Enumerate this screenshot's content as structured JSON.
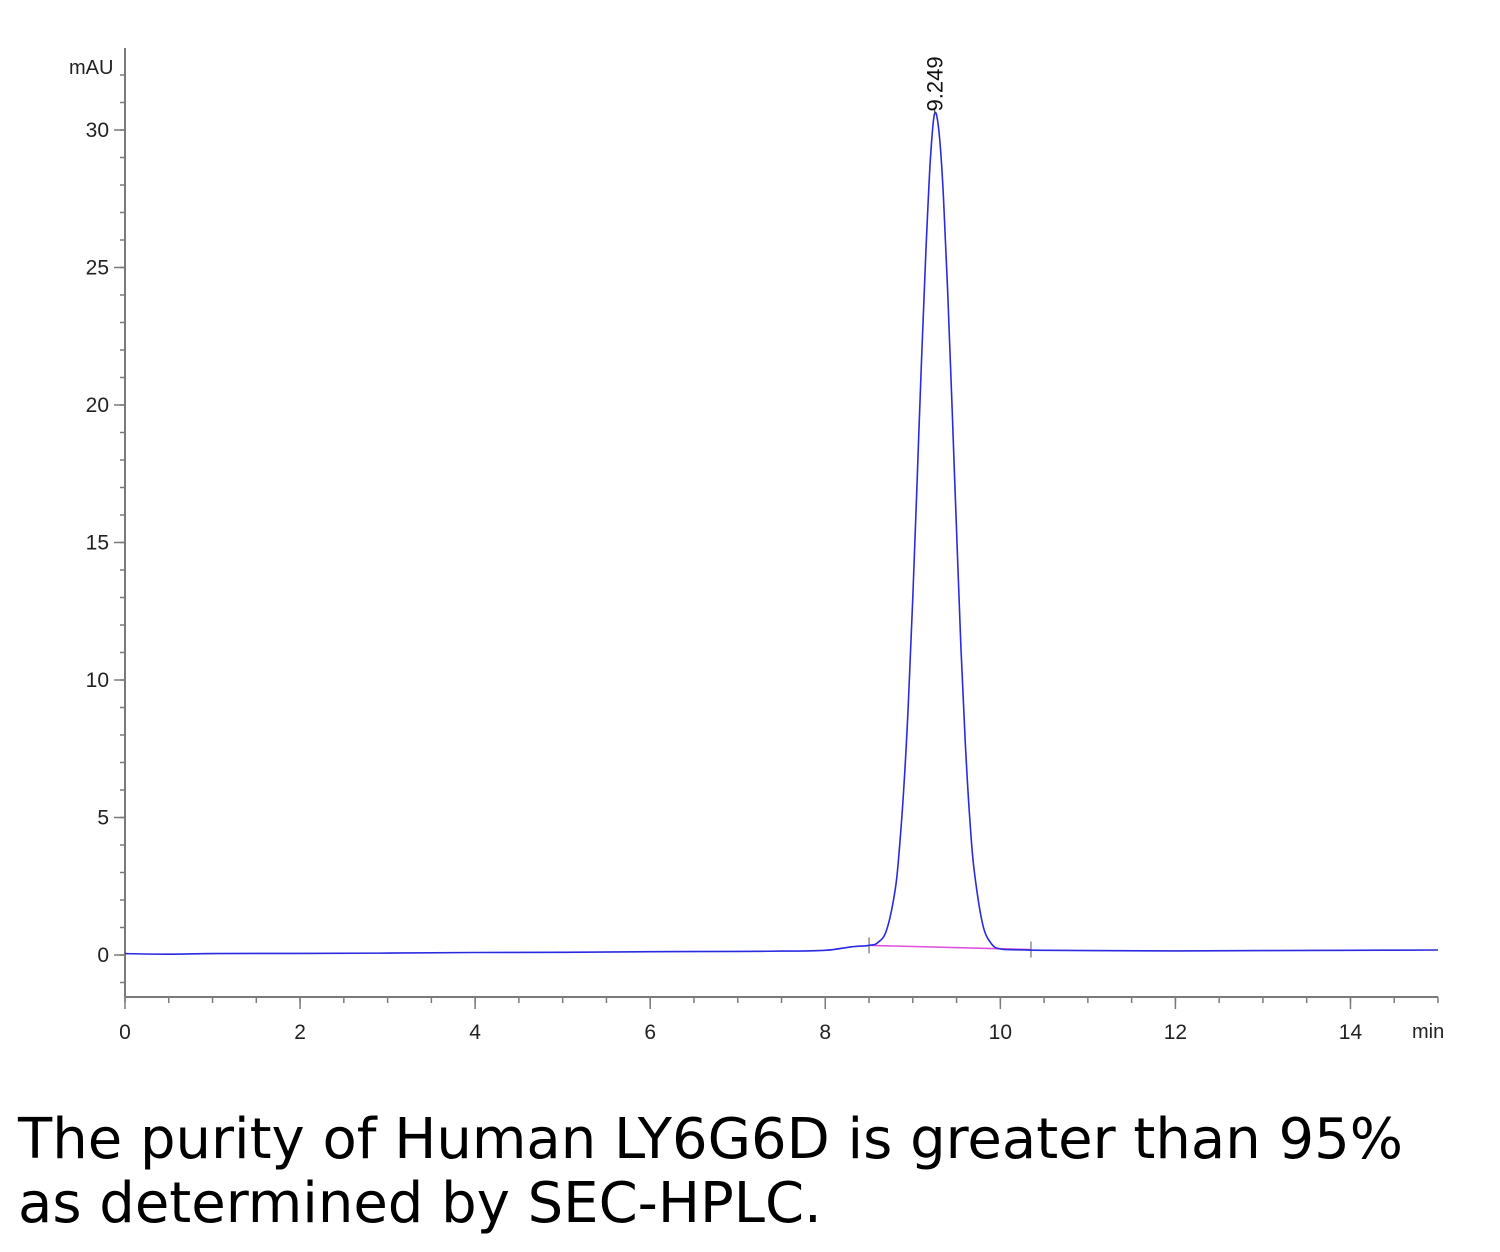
{
  "chart_data": {
    "type": "line",
    "xlabel": "min",
    "ylabel": "mAU",
    "xlim": [
      0,
      15
    ],
    "ylim": [
      -1.5,
      32.8
    ],
    "x_ticks": [
      0,
      2,
      4,
      6,
      8,
      10,
      12,
      14
    ],
    "y_ticks": [
      0,
      5,
      10,
      15,
      20,
      25,
      30
    ],
    "grid": false,
    "series": [
      {
        "color": "#2a2ae0",
        "x": [
          0,
          0.5,
          1,
          2,
          3,
          4,
          5,
          6,
          7,
          7.5,
          8,
          8.3,
          8.5,
          8.6,
          8.7,
          8.8,
          8.85,
          8.9,
          8.95,
          9.0,
          9.05,
          9.1,
          9.15,
          9.2,
          9.249,
          9.3,
          9.35,
          9.4,
          9.45,
          9.5,
          9.55,
          9.6,
          9.65,
          9.7,
          9.8,
          9.9,
          10.0,
          10.2,
          10.5,
          11,
          12,
          13,
          14,
          15
        ],
        "y": [
          0.05,
          0.03,
          0.05,
          0.06,
          0.07,
          0.09,
          0.1,
          0.12,
          0.13,
          0.14,
          0.17,
          0.3,
          0.35,
          0.45,
          0.9,
          2.4,
          4.0,
          6.2,
          9.2,
          13.0,
          17.3,
          21.7,
          25.6,
          28.9,
          30.6,
          29.9,
          27.6,
          24.0,
          19.8,
          15.4,
          11.2,
          7.7,
          5.0,
          3.1,
          1.1,
          0.4,
          0.22,
          0.19,
          0.17,
          0.16,
          0.15,
          0.16,
          0.17,
          0.18
        ]
      }
    ],
    "integration_baseline": {
      "color": "#e050e0",
      "x": [
        8.5,
        10.35
      ],
      "y": [
        0.35,
        0.2
      ]
    },
    "peak_annotation": {
      "x": 9.249,
      "label": "9.249"
    }
  },
  "caption": "The purity of Human LY6G6D is greater than 95% as determined by SEC-HPLC."
}
